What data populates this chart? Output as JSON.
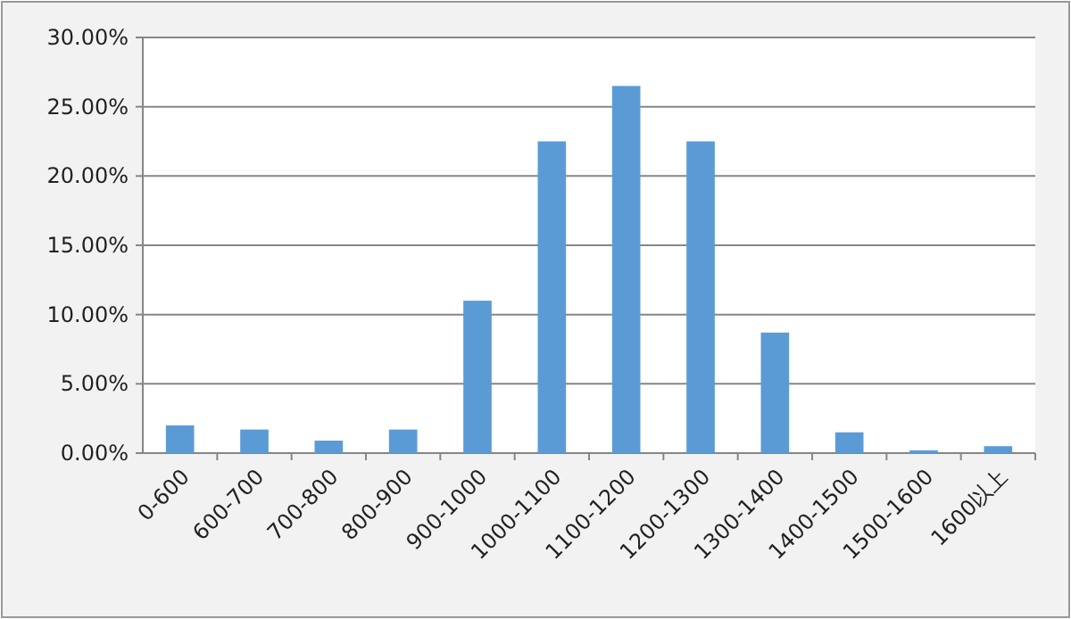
{
  "chart_data": {
    "type": "bar",
    "categories": [
      "0-600",
      "600-700",
      "700-800",
      "800-900",
      "900-1000",
      "1000-1100",
      "1100-1200",
      "1200-1300",
      "1300-1400",
      "1400-1500",
      "1500-1600",
      "1600以上"
    ],
    "values": [
      2.0,
      1.7,
      0.9,
      1.7,
      11.0,
      22.5,
      26.5,
      22.5,
      8.7,
      1.5,
      0.2,
      0.5
    ],
    "color": "#5b9bd5",
    "ylim": [
      0,
      30
    ],
    "yticks": [
      {
        "value": 0,
        "label": "0.00%"
      },
      {
        "value": 5,
        "label": "5.00%"
      },
      {
        "value": 10,
        "label": "10.00%"
      },
      {
        "value": 15,
        "label": "15.00%"
      },
      {
        "value": 20,
        "label": "20.00%"
      },
      {
        "value": 25,
        "label": "25.00%"
      },
      {
        "value": 30,
        "label": "30.00%"
      }
    ],
    "grid": "y"
  }
}
